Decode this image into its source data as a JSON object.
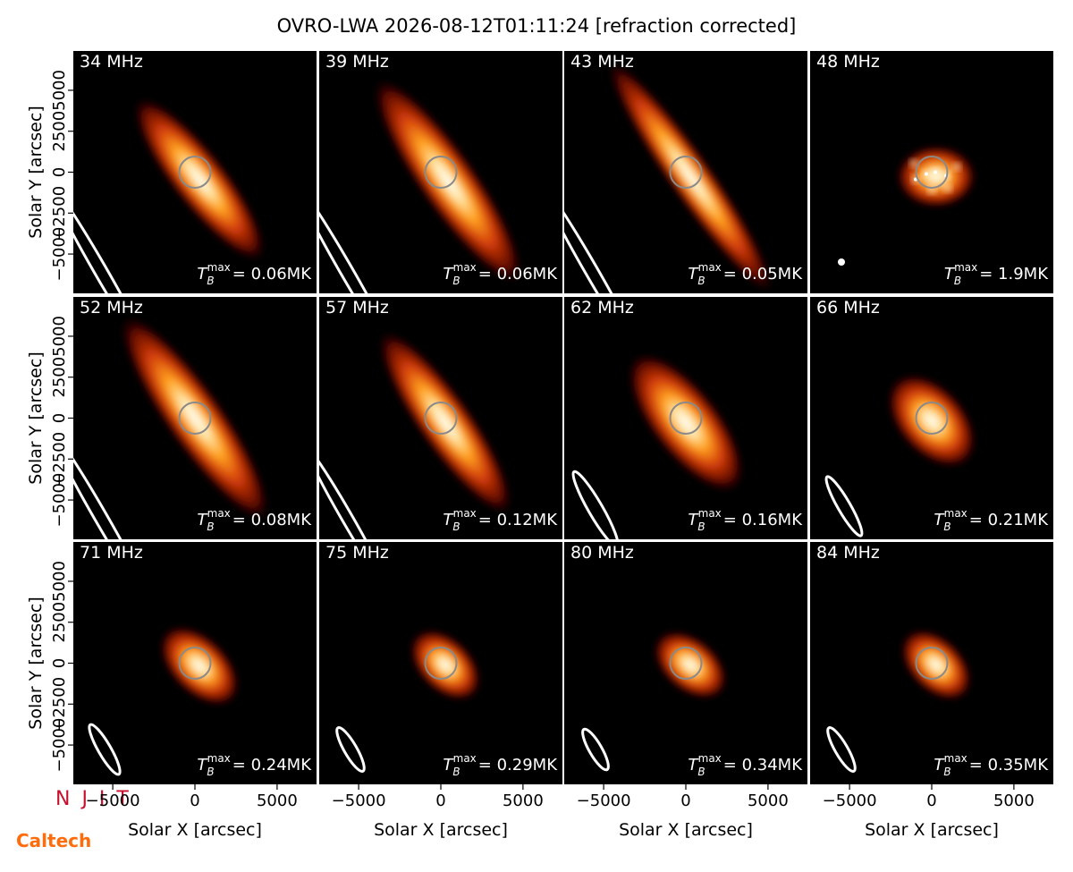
{
  "chart_data": {
    "type": "image_grid",
    "title": "OVRO-LWA 2026-08-12T01:11:24 [refraction corrected]",
    "xlabel": "Solar X [arcsec]",
    "ylabel": "Solar Y [arcsec]",
    "xlim": [
      -7400,
      7400
    ],
    "ylim": [
      -7400,
      7400
    ],
    "xticks": [
      {
        "value": -5000,
        "label": "−5000"
      },
      0,
      5000
    ],
    "yticks": [
      {
        "value": -5000,
        "label": "−5000"
      },
      {
        "value": -2500,
        "label": "−2500"
      },
      0,
      2500,
      5000
    ],
    "tb_symbol": "T",
    "tb_sub": "B",
    "tb_sup": "max",
    "panels": [
      {
        "label": "34 MHz",
        "tb": "= 0.06MK"
      },
      {
        "label": "39 MHz",
        "tb": "= 0.06MK"
      },
      {
        "label": "43 MHz",
        "tb": "= 0.05MK"
      },
      {
        "label": "48 MHz",
        "tb": "= 1.9MK"
      },
      {
        "label": "52 MHz",
        "tb": "= 0.08MK"
      },
      {
        "label": "57 MHz",
        "tb": "= 0.12MK"
      },
      {
        "label": "62 MHz",
        "tb": "= 0.16MK"
      },
      {
        "label": "66 MHz",
        "tb": "= 0.21MK"
      },
      {
        "label": "71 MHz",
        "tb": "= 0.24MK"
      },
      {
        "label": "75 MHz",
        "tb": "= 0.29MK"
      },
      {
        "label": "80 MHz",
        "tb": "= 0.34MK"
      },
      {
        "label": "84 MHz",
        "tb": "= 0.35MK"
      }
    ]
  },
  "logos": [
    "N J I T",
    "Caltech"
  ]
}
